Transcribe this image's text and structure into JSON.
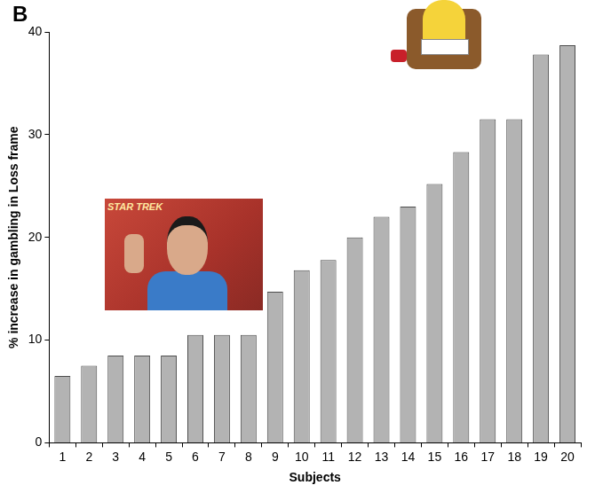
{
  "chart_data": {
    "type": "bar",
    "panel": "B",
    "annotations": [
      "STAR TREK"
    ],
    "x_label": "Subjects",
    "y_label": "% increase in gambling in Loss frame",
    "categories": [
      "1",
      "2",
      "3",
      "4",
      "5",
      "6",
      "7",
      "8",
      "9",
      "10",
      "11",
      "12",
      "13",
      "14",
      "15",
      "16",
      "17",
      "18",
      "19",
      "20"
    ],
    "values": [
      6.5,
      7.5,
      8.5,
      8.5,
      8.5,
      10.5,
      10.5,
      10.5,
      14.7,
      16.8,
      17.8,
      20,
      22,
      23,
      25.2,
      28.3,
      31.5,
      31.5,
      37.8,
      38.7
    ],
    "color": "#b3b3b3",
    "ylim": [
      0,
      40
    ],
    "yticks": [
      0,
      10,
      20,
      30,
      40
    ],
    "grid": false
  }
}
